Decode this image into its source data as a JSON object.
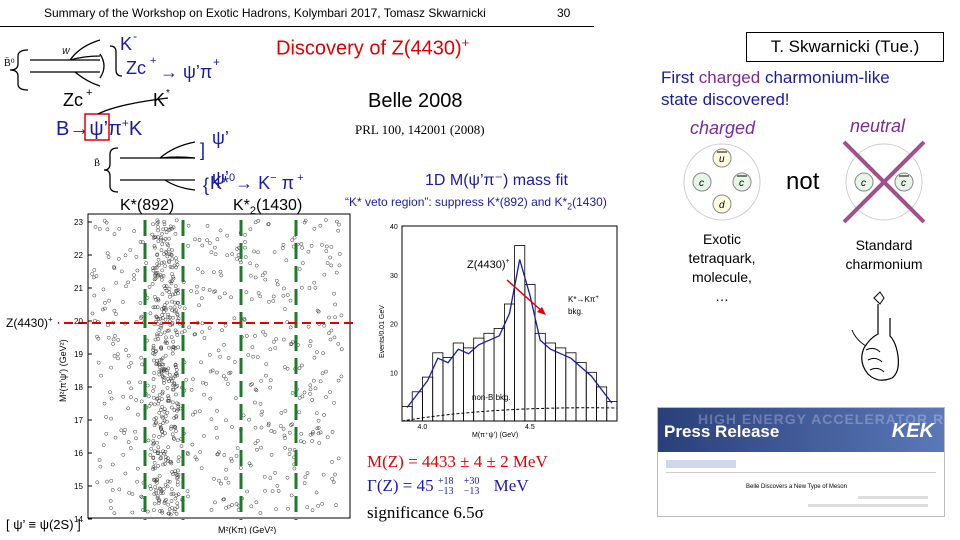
{
  "header": {
    "summary": "Summary of the Workshop on Exotic Hadrons, Kolymbari 2017, Tomasz Skwarnicki",
    "page_number": "30"
  },
  "slide": {
    "title": "Discovery of Z(4430)",
    "title_sup": "+",
    "presenter": "T. Skwarnicki (Tue.)",
    "first_charged_line1_a": "First ",
    "first_charged_line1_b": "charged",
    "first_charged_line1_c": " charmonium-like",
    "first_charged_line2": "state discovered!",
    "belle": "Belle 2008",
    "prl": "PRL 100, 142001 (2008)",
    "fit_label": "1D M(ψ’π⁻) mass fit",
    "veto_label": "“K* veto region”: suppress K*(892) and K*",
    "veto_sub": "2",
    "veto_end": "(1430)",
    "charged_label": "charged",
    "neutral_label": "neutral",
    "not_label": "not",
    "exotic_text": [
      "Exotic",
      "tetraquark,",
      "molecule,",
      "…"
    ],
    "standard_text": [
      "Standard",
      "charmonium"
    ],
    "psi_def": "[ ψ’ ≡ ψ(2S) ]"
  },
  "decay": {
    "k_minus": "K",
    "k_minus_sup": "-",
    "zc_chain": "Zc",
    "zc_chain_to": "→ ψ’π",
    "zc_label": "Zc",
    "kstar": "K",
    "b_chain": "B→ψ’π",
    "b_chain_end": "K",
    "psi_prime": "ψ’",
    "kstar0_chain": "K*⁰→ K⁻ π",
    "b_bar_label": "B̄⁰",
    "quark_u": "u",
    "quark_d": "d"
  },
  "dalitz": {
    "kstar892": "K*(892)",
    "kstar1430": "K*",
    "kstar1430_sub": "2",
    "kstar1430_end": "(1430)",
    "z_label": "Z(4430)",
    "ylabel": "M²(π’ψ’) (GeV²)",
    "xlabel": "M²(Kπ) (GeV²)",
    "y_ticks": [
      "23",
      "22",
      "21",
      "20",
      "19",
      "18",
      "17",
      "16",
      "15",
      "14"
    ]
  },
  "chart_data": {
    "type": "bar",
    "title": "1D M(ψ’π⁻) mass fit",
    "xlabel": "M(π⁺ψ’) (GeV)",
    "ylabel": "Events/0.01 GeV",
    "x": [
      3.9,
      3.95,
      4.0,
      4.05,
      4.1,
      4.15,
      4.2,
      4.25,
      4.3,
      4.35,
      4.4,
      4.43,
      4.45,
      4.5,
      4.55,
      4.6,
      4.65,
      4.7,
      4.75,
      4.8,
      4.85
    ],
    "values": [
      3,
      6,
      9,
      14,
      13,
      16,
      15,
      17,
      18,
      19,
      24,
      36,
      28,
      18,
      16,
      15,
      14,
      12,
      10,
      7,
      4
    ],
    "xlim": [
      3.9,
      4.9
    ],
    "ylim": [
      0,
      40
    ],
    "y_ticks": [
      "40",
      "30",
      "20",
      "10"
    ],
    "x_ticks": [
      "4.0",
      "4.5"
    ],
    "annotations": {
      "z_arrow": "Z(4430)",
      "z_sup": "+",
      "kstar_bkg_1": "K*→Kπ",
      "kstar_bkg_sup": "+",
      "kstar_bkg_2": "bkg.",
      "b_bkg": "non-B bkg."
    }
  },
  "results": {
    "mass": "M(Z) = 4433 ± 4 ± 2 MeV",
    "width_a": "Γ(Z) = 45",
    "width_sup_a": "+18",
    "width_sub_a": "−13",
    "width_sup_b": "+30",
    "width_sub_b": "−13",
    "width_unit": "MeV",
    "significance": "significance 6.5σ"
  },
  "quarks": {
    "c": "c",
    "cbar": "c",
    "u": "u",
    "d": "d"
  },
  "press": {
    "banner": "Press Release",
    "org": "KEK",
    "subtitle": "HIGH ENERGY ACCELERATOR RESEARCH ORGANIZATION",
    "heading": "Belle Discovers a New Type of Meson"
  },
  "colors": {
    "red": "#e00000",
    "blue": "#1a1aa6",
    "purple": "#7a2a9a",
    "green": "#1e7a2a",
    "circle": "#a0508a"
  }
}
